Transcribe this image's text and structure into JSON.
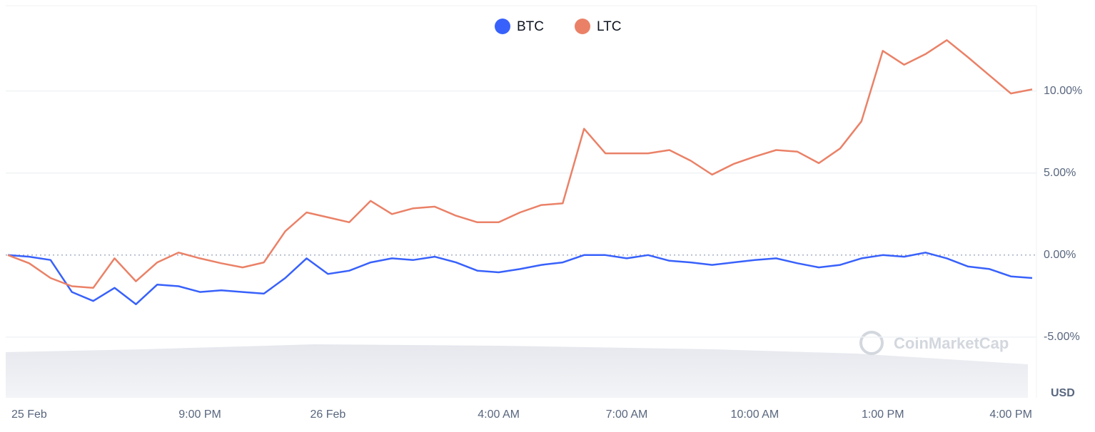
{
  "chart_data": {
    "type": "line",
    "x": [
      16.5,
      17,
      17.5,
      18,
      18.5,
      19,
      19.5,
      20,
      20.5,
      21,
      21.5,
      22,
      22.5,
      23,
      23.5,
      24,
      24.5,
      25,
      25.5,
      26,
      26.5,
      27,
      27.5,
      28,
      28.5,
      29,
      29.5,
      30,
      30.5,
      31,
      31.5,
      32,
      32.5,
      33,
      33.5,
      34,
      34.5,
      35,
      35.5,
      36,
      36.5,
      37,
      37.5,
      38,
      38.5,
      39,
      39.5,
      40,
      40.5
    ],
    "series": [
      {
        "name": "BTC",
        "color": "#3861fb",
        "values": [
          0,
          -0.1,
          -0.3,
          -2.25,
          -2.8,
          -2.0,
          -3.0,
          -1.8,
          -1.9,
          -2.25,
          -2.15,
          -2.25,
          -2.35,
          -1.4,
          -0.2,
          -1.15,
          -0.95,
          -0.45,
          -0.2,
          -0.3,
          -0.1,
          -0.45,
          -0.95,
          -1.05,
          -0.85,
          -0.6,
          -0.45,
          0,
          0,
          -0.2,
          0,
          -0.35,
          -0.45,
          -0.6,
          -0.45,
          -0.3,
          -0.2,
          -0.5,
          -0.75,
          -0.6,
          -0.2,
          0,
          -0.1,
          0.15,
          -0.2,
          -0.7,
          -0.85,
          -1.3,
          -1.4
        ]
      },
      {
        "name": "LTC",
        "color": "#ea8167",
        "values": [
          0,
          -0.5,
          -1.4,
          -1.9,
          -2.0,
          -0.2,
          -1.6,
          -0.45,
          0.15,
          -0.2,
          -0.5,
          -0.75,
          -0.45,
          1.45,
          2.6,
          2.3,
          2.0,
          3.3,
          2.5,
          2.85,
          2.95,
          2.4,
          2.0,
          2.0,
          2.6,
          3.05,
          3.15,
          7.7,
          6.2,
          6.2,
          6.2,
          6.4,
          5.75,
          4.9,
          5.55,
          6.0,
          6.4,
          6.3,
          5.6,
          6.5,
          8.15,
          12.45,
          11.6,
          12.25,
          13.1,
          12.05,
          10.95,
          9.85,
          10.1
        ]
      }
    ],
    "xlim": [
      16.45,
      40.6
    ],
    "xticks": [
      {
        "value": 17,
        "label": "25 Feb"
      },
      {
        "value": 21,
        "label": "9:00 PM"
      },
      {
        "value": 24,
        "label": "26 Feb"
      },
      {
        "value": 28,
        "label": "4:00 AM"
      },
      {
        "value": 31,
        "label": "7:00 AM"
      },
      {
        "value": 34,
        "label": "10:00 AM"
      },
      {
        "value": 37,
        "label": "1:00 PM"
      },
      {
        "value": 40,
        "label": "4:00 PM"
      }
    ],
    "ylim": [
      -8.7,
      15.2
    ],
    "yticks": [
      {
        "value": -5,
        "label": "-5.00%"
      },
      {
        "value": 0,
        "label": "0.00%"
      },
      {
        "value": 5,
        "label": "5.00%"
      },
      {
        "value": 10,
        "label": "10.00%"
      }
    ],
    "y_unit_label": "USD",
    "watermark": "CoinMarketCap",
    "grid": true,
    "legend": "top"
  }
}
